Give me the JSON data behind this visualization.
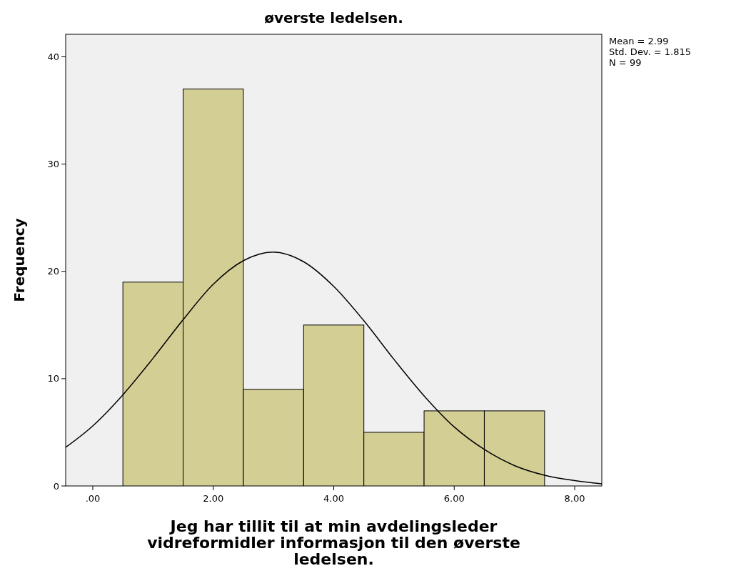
{
  "chart_data": {
    "type": "histogram",
    "title": "øverste ledelsen.",
    "xlabel": "Jeg har tillit til at min avdelingsleder vidreformidler informasjon til den øverste ledelsen.",
    "ylabel": "Frequency",
    "bins": [
      0.5,
      1.5,
      2.5,
      3.5,
      4.5,
      5.5,
      6.5,
      7.5
    ],
    "series": [
      {
        "color": "#d3ce93",
        "values": [
          19,
          37,
          9,
          15,
          5,
          7,
          7
        ]
      },
      {
        "type": "line",
        "color": "#000000",
        "x": [
          -0.45,
          0,
          0.5,
          1,
          1.5,
          2,
          2.5,
          2.99,
          3.5,
          4,
          4.5,
          5,
          5.5,
          6,
          6.5,
          7,
          7.5,
          8,
          8.45
        ],
        "values": [
          3.6,
          5.6,
          8.5,
          11.9,
          15.5,
          18.8,
          21,
          21.8,
          20.9,
          18.6,
          15.4,
          11.8,
          8.4,
          5.5,
          3.4,
          1.9,
          1,
          0.5,
          0.2
        ]
      }
    ],
    "xlim": [
      -0.45,
      8.45
    ],
    "ylim": [
      0,
      42.1
    ],
    "xticks": [
      {
        "value": 0,
        "label": ".00"
      },
      {
        "value": 2,
        "label": "2.00"
      },
      {
        "value": 4,
        "label": "4.00"
      },
      {
        "value": 6,
        "label": "6.00"
      },
      {
        "value": 8,
        "label": "8.00"
      }
    ],
    "yticks": [
      0,
      10,
      20,
      30,
      40
    ],
    "annotations": [
      "Mean = 2.99",
      "Std. Dev. = 1.815",
      "N = 99"
    ]
  }
}
